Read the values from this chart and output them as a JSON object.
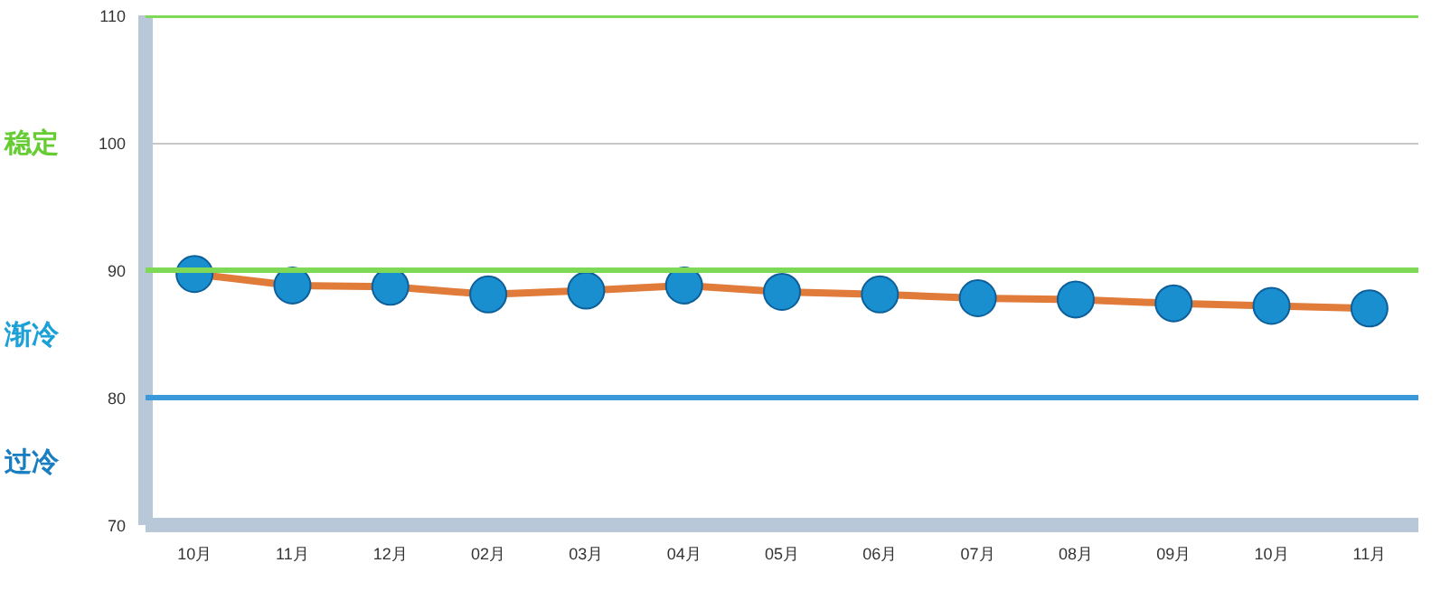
{
  "chart_data": {
    "type": "line",
    "categories": [
      "10月",
      "11月",
      "12月",
      "02月",
      "03月",
      "04月",
      "05月",
      "06月",
      "07月",
      "08月",
      "09月",
      "10月",
      "11月"
    ],
    "series": [
      {
        "color": "#e07b39",
        "values": [
          89.7,
          88.8,
          88.7,
          88.1,
          88.4,
          88.8,
          88.3,
          88.1,
          87.8,
          87.7,
          87.4,
          87.2,
          87.0
        ]
      }
    ],
    "ylim": [
      70,
      110
    ],
    "yticks": [
      70,
      80,
      90,
      100,
      110
    ],
    "grid": "y",
    "marker": "circle",
    "line_style": "solid",
    "ref_lines": [
      {
        "axis": "y",
        "value": 110,
        "color": "#7ed957"
      },
      {
        "axis": "y",
        "value": 90,
        "color": "#7ed957"
      },
      {
        "axis": "y",
        "value": 80,
        "color": "#3a9ad9"
      }
    ],
    "annotations": [
      "稳定",
      "渐冷",
      "过冷"
    ]
  }
}
